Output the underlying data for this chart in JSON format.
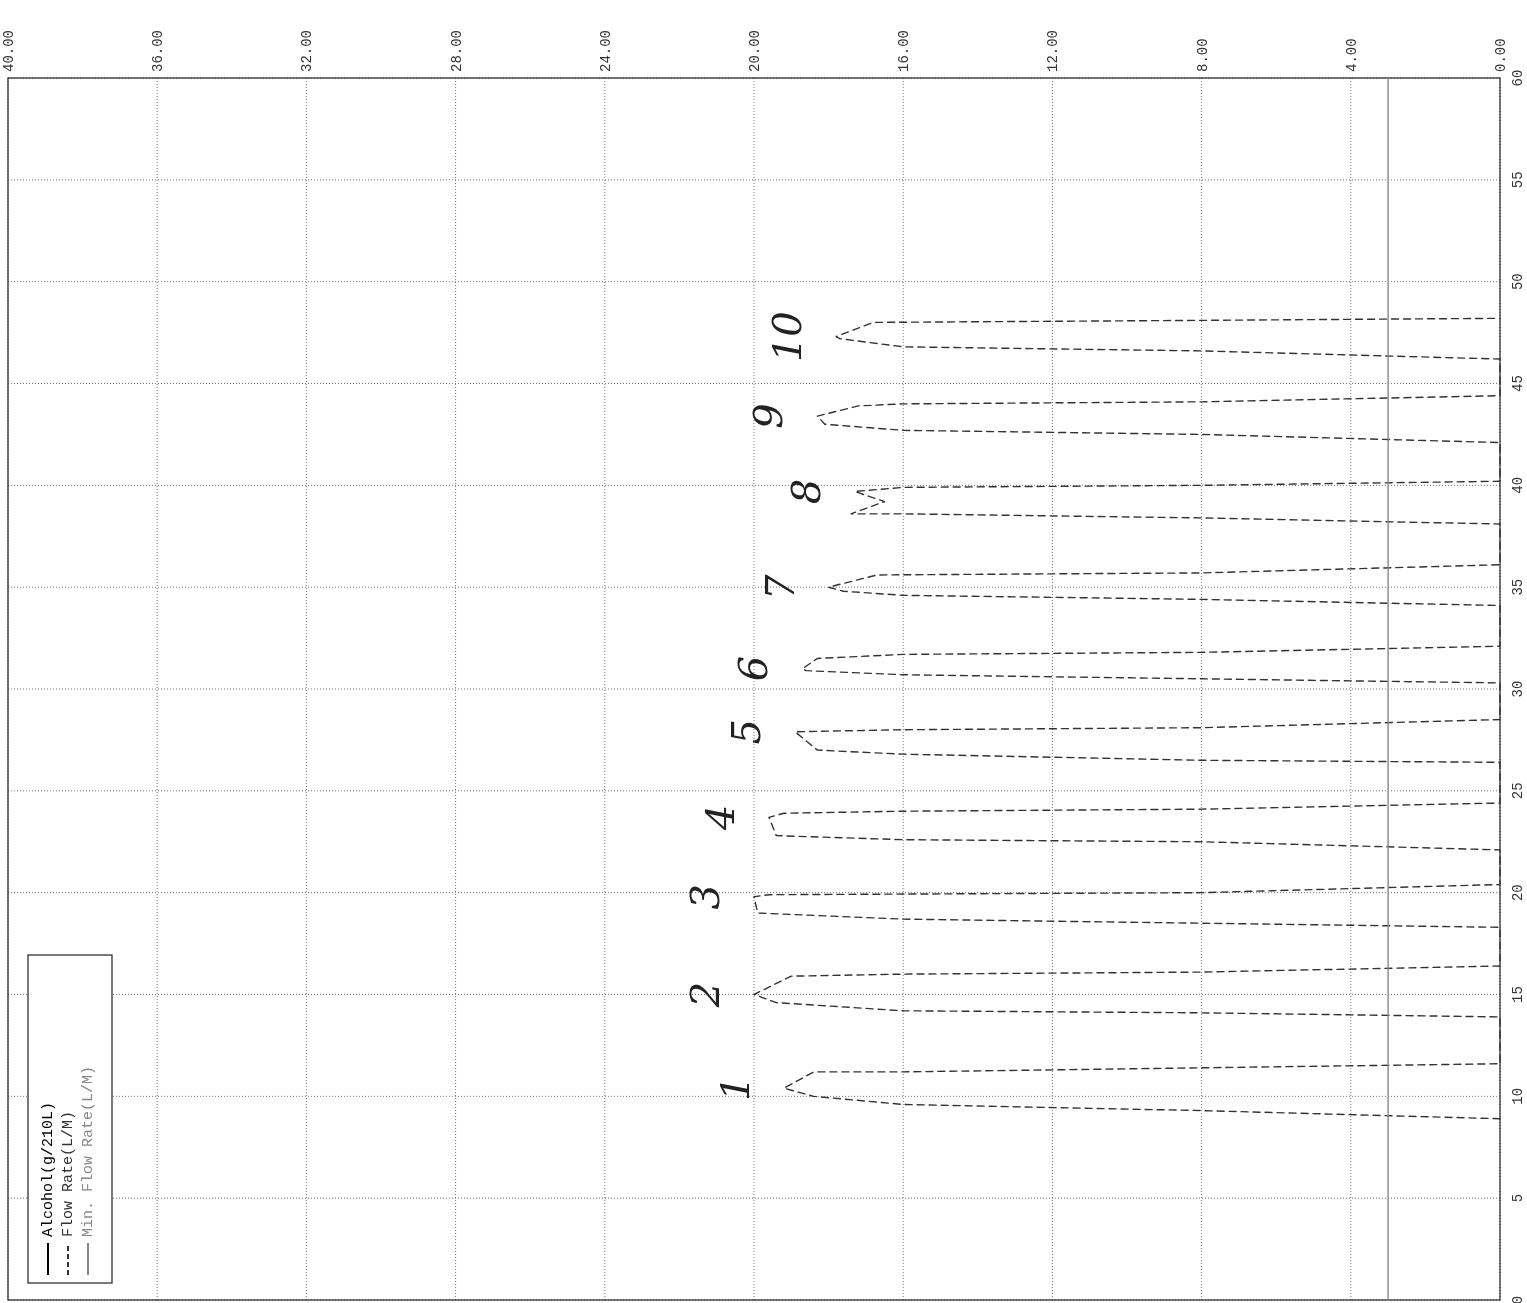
{
  "chart_data": {
    "type": "line",
    "xlim": [
      40,
      0
    ],
    "ylim": [
      0,
      60
    ],
    "yticks": [
      0,
      5,
      10,
      15,
      20,
      25,
      30,
      35,
      40,
      45,
      50,
      55,
      60
    ],
    "xticks": [
      {
        "value": 0,
        "label": "0.00"
      },
      {
        "value": 4,
        "label": "4.00"
      },
      {
        "value": 8,
        "label": "8.00"
      },
      {
        "value": 12,
        "label": "12.00"
      },
      {
        "value": 16,
        "label": "16.00"
      },
      {
        "value": 20,
        "label": "20.00"
      },
      {
        "value": 24,
        "label": "24.00"
      },
      {
        "value": 28,
        "label": "28.00"
      },
      {
        "value": 32,
        "label": "32.00"
      },
      {
        "value": 36,
        "label": "36.00"
      },
      {
        "value": 40,
        "label": "40.00"
      }
    ],
    "grid": true,
    "legend": "bottom left",
    "series": [
      {
        "name": "Alcohol(g/210L)",
        "color": "#000000",
        "line_style": "solid"
      },
      {
        "name": "Flow Rate(L/M)",
        "color": "#333333",
        "line_style": "dashed",
        "values": [
          8.9,
          9.3,
          9.6,
          10.0,
          10.4,
          11.2,
          11.2,
          11.4,
          11.6,
          13.9,
          14.1,
          14.2,
          14.6,
          15.0,
          15.9,
          16.0,
          16.1,
          16.4,
          18.3,
          18.5,
          18.7,
          19.0,
          19.8,
          19.9,
          20.0,
          20.4,
          22.1,
          22.5,
          22.6,
          22.8,
          23.7,
          23.9,
          24.0,
          24.1,
          24.4,
          26.4,
          26.5,
          26.8,
          27.0,
          27.9,
          28.0,
          28.1,
          28.5,
          30.3,
          30.5,
          30.7,
          30.9,
          31.0,
          31.5,
          31.7,
          31.8,
          32.1,
          34.1,
          34.4,
          34.6,
          34.8,
          35.0,
          35.6,
          35.7,
          36.1,
          38.1,
          38.4,
          38.6,
          38.6,
          39.2,
          39.7,
          39.9,
          40.0,
          40.2,
          42.1,
          42.5,
          42.7,
          43.0,
          43.4,
          43.9,
          44.0,
          44.1,
          44.4,
          46.2,
          46.6,
          46.8,
          47.2,
          47.3,
          48.0,
          48.1,
          48.2
        ],
        "x": [
          0,
          8,
          16,
          18.4,
          19.2,
          18.4,
          16,
          8,
          0,
          0,
          8,
          16,
          19.4,
          20.0,
          19.0,
          16,
          8,
          0,
          0,
          8,
          16,
          19.9,
          20.0,
          19.6,
          8,
          0,
          0,
          8,
          16,
          19.4,
          19.6,
          19.2,
          16,
          8,
          0,
          0,
          8,
          16,
          18.3,
          18.9,
          16,
          8,
          0,
          0,
          8,
          16,
          18.6,
          18.7,
          18.3,
          16,
          8,
          0,
          0,
          8,
          16,
          17.6,
          18.0,
          16.7,
          8,
          0,
          0,
          8,
          16,
          17.4,
          16.5,
          17.3,
          16,
          8,
          0,
          0,
          8,
          16,
          18.1,
          18.3,
          17.2,
          16,
          8,
          0,
          0,
          8,
          16,
          17.7,
          17.8,
          16.8,
          8,
          0
        ]
      },
      {
        "name": "Min. Flow Rate(L/M)",
        "color": "#888888",
        "line_style": "solid",
        "x": [
          3,
          3
        ],
        "values": [
          0,
          60
        ]
      }
    ],
    "annotations": [
      {
        "text": "1",
        "y": 10.4,
        "x": 19.2
      },
      {
        "text": "2",
        "y": 15.0,
        "x": 20.0
      },
      {
        "text": "3",
        "y": 19.8,
        "x": 20.0
      },
      {
        "text": "4",
        "y": 23.7,
        "x": 19.6
      },
      {
        "text": "5",
        "y": 27.9,
        "x": 18.9
      },
      {
        "text": "6",
        "y": 31.0,
        "x": 18.7
      },
      {
        "text": "7",
        "y": 35.0,
        "x": 18.0
      },
      {
        "text": "8",
        "y": 39.7,
        "x": 17.3
      },
      {
        "text": "9",
        "y": 43.4,
        "x": 18.3
      },
      {
        "text": "10",
        "y": 47.3,
        "x": 17.8
      }
    ]
  }
}
